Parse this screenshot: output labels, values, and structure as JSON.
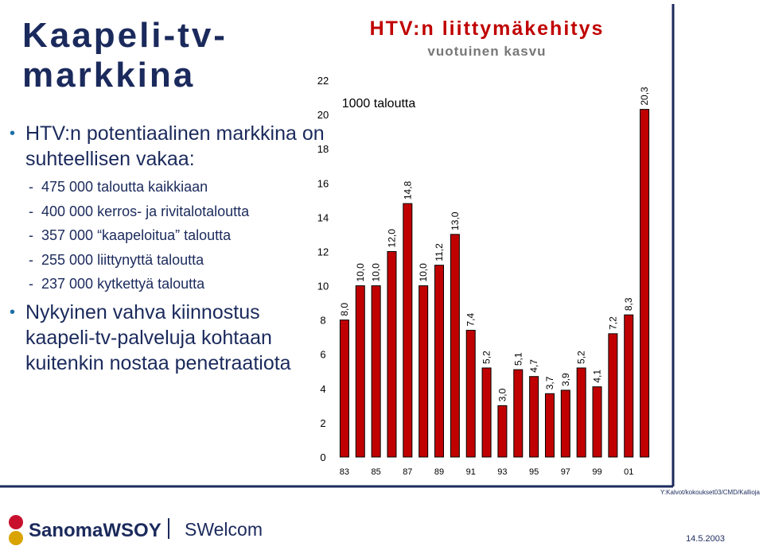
{
  "slide": {
    "title": "Kaapeli-tv-markkina",
    "bullets": [
      {
        "text": "HTV:n potentiaalinen markkina on suhteellisen vakaa:",
        "sub": [
          "475 000 taloutta kaikkiaan",
          "400 000 kerros- ja rivitalotaloutta",
          "357 000 “kaapeloitua” taloutta",
          "255 000 liittynyttä taloutta",
          "237 000 kytkettyä taloutta"
        ]
      },
      {
        "text": "Nykyinen vahva kiinnostus kaapeli-tv-palveluja kohtaan kuitenkin nostaa penetraatiota"
      }
    ],
    "footer": {
      "logo": "SanomaWSOY",
      "unit": "SWelcom",
      "date": "14.5.2003",
      "path": "Y:Kalvot/kokoukset03/CMD/Kallioja"
    }
  },
  "chart_data": {
    "type": "bar",
    "title": "HTV:n liittymäkehitys",
    "subtitle": "vuotuinen kasvu",
    "annotation": "1000 taloutta",
    "categories": [
      "83",
      null,
      "85",
      null,
      "87",
      null,
      "89",
      null,
      "91",
      null,
      "93",
      null,
      "95",
      null,
      "97",
      null,
      "99",
      null,
      "01",
      null
    ],
    "values": [
      8.0,
      10.0,
      10.0,
      12.0,
      14.8,
      10.0,
      11.2,
      13.0,
      7.4,
      5.2,
      3.0,
      5.1,
      4.7,
      3.7,
      3.9,
      5.2,
      4.1,
      7.2,
      8.3,
      20.3
    ],
    "value_labels": [
      "8,0",
      "10,0",
      "10,0",
      "12,0",
      "14,8",
      "10,0",
      "11,2",
      "13,0",
      "7,4",
      "5,2",
      "3,0",
      "5,1",
      "4,7",
      "3,7",
      "3,9",
      "5,2",
      "4,1",
      "7,2",
      "8,3",
      "20,3"
    ],
    "color": "#c00000",
    "ylim": [
      0,
      22
    ],
    "yticks": [
      0,
      2,
      4,
      6,
      8,
      10,
      12,
      14,
      16,
      18,
      20,
      22
    ],
    "grid": false
  }
}
